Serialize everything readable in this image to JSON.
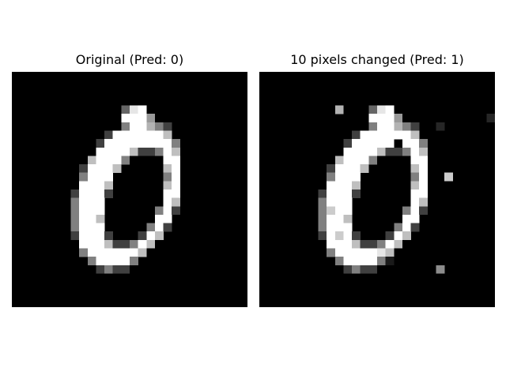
{
  "figure": {
    "panels": [
      {
        "title": "Original (Pred: 0)"
      },
      {
        "title": "10 pixels changed (Pred: 1)"
      }
    ]
  }
}
